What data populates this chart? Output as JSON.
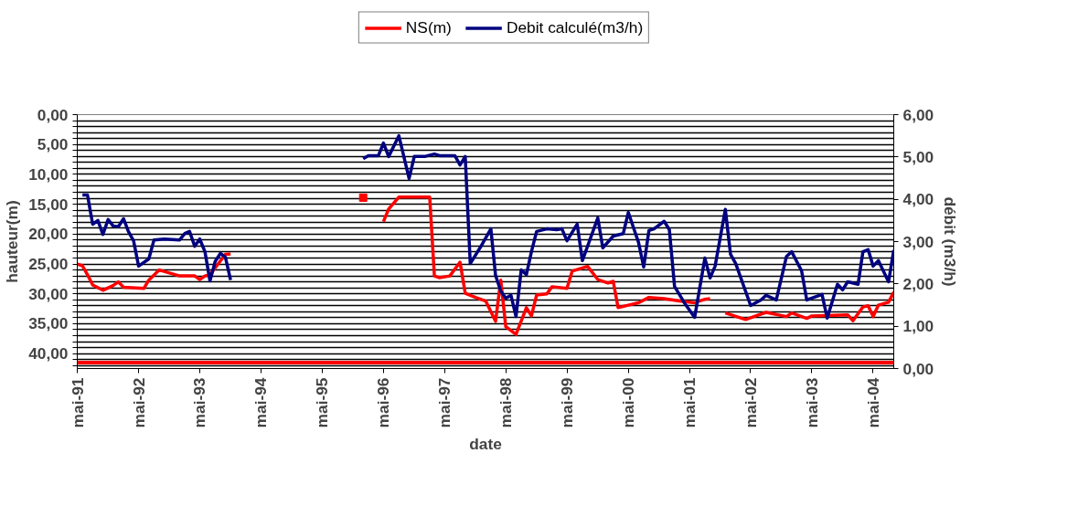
{
  "chart_data": {
    "type": "line",
    "xlabel": "date",
    "ylabel": "hauteur(m)",
    "y2label": "débit (m3/h)",
    "xlim": [
      "1991-05",
      "2004-09"
    ],
    "xticks": [
      {
        "value": "1991-05",
        "label": "mai-91"
      },
      {
        "value": "1992-05",
        "label": "mai-92"
      },
      {
        "value": "1993-05",
        "label": "mai-93"
      },
      {
        "value": "1994-05",
        "label": "mai-94"
      },
      {
        "value": "1995-05",
        "label": "mai-95"
      },
      {
        "value": "1996-05",
        "label": "mai-96"
      },
      {
        "value": "1997-05",
        "label": "mai-97"
      },
      {
        "value": "1998-05",
        "label": "mai-98"
      },
      {
        "value": "1999-05",
        "label": "mai-99"
      },
      {
        "value": "2000-05",
        "label": "mai-00"
      },
      {
        "value": "2001-05",
        "label": "mai-01"
      },
      {
        "value": "2002-05",
        "label": "mai-02"
      },
      {
        "value": "2003-05",
        "label": "mai-03"
      },
      {
        "value": "2004-05",
        "label": "mai-04"
      }
    ],
    "ylim": [
      42.5,
      0
    ],
    "yticks": [
      {
        "value": 0,
        "label": "0,00"
      },
      {
        "value": 1,
        "label": null
      },
      {
        "value": 2,
        "label": null
      },
      {
        "value": 3,
        "label": null
      },
      {
        "value": 4,
        "label": null
      },
      {
        "value": 5,
        "label": "5,00"
      },
      {
        "value": 6,
        "label": null
      },
      {
        "value": 7,
        "label": null
      },
      {
        "value": 8,
        "label": null
      },
      {
        "value": 9,
        "label": null
      },
      {
        "value": 10,
        "label": "10,00"
      },
      {
        "value": 11,
        "label": null
      },
      {
        "value": 12,
        "label": null
      },
      {
        "value": 13,
        "label": null
      },
      {
        "value": 14,
        "label": null
      },
      {
        "value": 15,
        "label": "15,00"
      },
      {
        "value": 16,
        "label": null
      },
      {
        "value": 17,
        "label": null
      },
      {
        "value": 18,
        "label": null
      },
      {
        "value": 19,
        "label": null
      },
      {
        "value": 20,
        "label": "20,00"
      },
      {
        "value": 21,
        "label": null
      },
      {
        "value": 22,
        "label": null
      },
      {
        "value": 23,
        "label": null
      },
      {
        "value": 24,
        "label": null
      },
      {
        "value": 25,
        "label": "25,00"
      },
      {
        "value": 26,
        "label": null
      },
      {
        "value": 27,
        "label": null
      },
      {
        "value": 28,
        "label": null
      },
      {
        "value": 29,
        "label": null
      },
      {
        "value": 30,
        "label": "30,00"
      },
      {
        "value": 31,
        "label": null
      },
      {
        "value": 32,
        "label": null
      },
      {
        "value": 33,
        "label": null
      },
      {
        "value": 34,
        "label": null
      },
      {
        "value": 35,
        "label": "35,00"
      },
      {
        "value": 36,
        "label": null
      },
      {
        "value": 37,
        "label": null
      },
      {
        "value": 38,
        "label": null
      },
      {
        "value": 39,
        "label": null
      },
      {
        "value": 40,
        "label": "40,00"
      },
      {
        "value": 41,
        "label": null
      },
      {
        "value": 42,
        "label": null
      }
    ],
    "y2lim": [
      0,
      6
    ],
    "y2ticks": [
      {
        "value": 0,
        "label": "0,00"
      },
      {
        "value": 1,
        "label": "1,00"
      },
      {
        "value": 2,
        "label": "2,00"
      },
      {
        "value": 3,
        "label": "3,00"
      },
      {
        "value": 4,
        "label": "4,00"
      },
      {
        "value": 5,
        "label": "5,00"
      },
      {
        "value": 6,
        "label": "6,00"
      }
    ],
    "grid": "y",
    "legend": "top",
    "marker": "none",
    "line_style": "solid",
    "ref_lines": [
      {
        "axis": "y",
        "value": 41.5,
        "color": "#ff0000"
      }
    ],
    "series": [
      {
        "name": "NS(m)",
        "color": "#ff0000",
        "x": [
          "1991-05",
          "1991-06",
          "1991-07",
          "1991-08",
          "1991-10",
          "1991-12",
          "1992-01",
          "1992-02",
          "1992-06",
          "1992-07",
          "1992-09",
          "1993-01",
          "1993-04",
          "1993-05",
          "1993-06",
          "1993-07",
          "1993-10",
          "1993-11",
          "1994-06",
          "1996-05",
          "1996-06",
          "1996-08",
          "1997-02",
          "1997-03",
          "1997-04",
          "1997-06",
          "1997-08",
          "1997-09",
          "1997-11",
          "1998-01",
          "1998-03",
          "1998-04",
          "1998-05",
          "1998-07",
          "1998-09",
          "1998-10",
          "1998-11",
          "1999-01",
          "1999-02",
          "1999-05",
          "1999-06",
          "1999-09",
          "1999-11",
          "2000-01",
          "2000-02",
          "2000-03",
          "2000-05",
          "2000-07",
          "2000-09",
          "2000-12",
          "2001-03",
          "2001-06",
          "2001-08",
          "2001-09",
          "2001-11",
          "2001-12",
          "2002-04",
          "2002-06",
          "2002-08",
          "2002-12",
          "2003-01",
          "2003-04",
          "2003-05",
          "2003-12",
          "2004-01",
          "2004-03",
          "2004-04",
          "2004-05",
          "2004-06",
          "2004-08",
          "2004-09"
        ],
        "values": [
          25.0,
          25.3,
          26.8,
          28.5,
          29.4,
          28.6,
          28.0,
          28.9,
          29.1,
          27.7,
          26.0,
          27.0,
          27.0,
          27.6,
          27.0,
          26.8,
          23.4,
          23.3,
          null,
          17.9,
          15.8,
          13.8,
          13.8,
          27.0,
          27.3,
          27.0,
          24.7,
          29.9,
          30.6,
          31.2,
          34.6,
          27.7,
          35.5,
          36.8,
          32.3,
          33.7,
          30.2,
          30.0,
          28.8,
          29.1,
          26.2,
          25.4,
          27.6,
          28.2,
          27.9,
          32.3,
          31.9,
          31.5,
          30.6,
          30.8,
          31.2,
          31.5,
          30.9,
          30.8,
          null,
          33.2,
          34.3,
          33.7,
          33.1,
          33.8,
          33.2,
          34.1,
          33.7,
          33.5,
          34.5,
          32.2,
          32.0,
          33.8,
          31.9,
          31.4,
          29.7
        ]
      },
      {
        "type": "scatter",
        "marker": "square",
        "color": "#ff0000",
        "x": [
          "1996-01"
        ],
        "values": [
          13.9
        ]
      },
      {
        "name": "Debit calculé(m3/h)",
        "color": "#000080",
        "axis": "y2",
        "x": [
          "1991-06",
          "1991-07",
          "1991-08",
          "1991-09",
          "1991-10",
          "1991-11",
          "1991-12",
          "1992-01",
          "1992-02",
          "1992-03",
          "1992-04",
          "1992-05",
          "1992-07",
          "1992-08",
          "1992-10",
          "1993-01",
          "1993-02",
          "1993-03",
          "1993-04",
          "1993-05",
          "1993-06",
          "1993-07",
          "1993-08",
          "1993-09",
          "1993-10",
          "1993-11",
          "1994-06",
          "1996-01",
          "1996-02",
          "1996-04",
          "1996-05",
          "1996-06",
          "1996-08",
          "1996-10",
          "1996-11",
          "1997-01",
          "1997-03",
          "1997-04",
          "1997-07",
          "1997-08",
          "1997-09",
          "1997-10",
          "1997-12",
          "1998-02",
          "1998-03",
          "1998-04",
          "1998-05",
          "1998-06",
          "1998-07",
          "1998-08",
          "1998-09",
          "1998-10",
          "1998-11",
          "1999-01",
          "1999-03",
          "1999-04",
          "1999-05",
          "1999-07",
          "1999-08",
          "1999-11",
          "1999-12",
          "2000-02",
          "2000-04",
          "2000-05",
          "2000-07",
          "2000-08",
          "2000-09",
          "2000-10",
          "2000-12",
          "2001-01",
          "2001-02",
          "2001-04",
          "2001-06",
          "2001-08",
          "2001-09",
          "2001-10",
          "2001-12",
          "2002-01",
          "2002-02",
          "2002-05",
          "2002-07",
          "2002-08",
          "2002-10",
          "2002-12",
          "2003-01",
          "2003-03",
          "2003-04",
          "2003-07",
          "2003-08",
          "2003-10",
          "2003-11",
          "2003-12",
          "2004-02",
          "2004-03",
          "2004-04",
          "2004-05",
          "2004-06",
          "2004-08",
          "2004-09"
        ],
        "values": [
          4.1,
          4.1,
          3.41,
          3.5,
          3.17,
          3.52,
          3.37,
          3.35,
          3.54,
          3.24,
          3.02,
          2.42,
          2.59,
          3.04,
          3.06,
          3.04,
          3.19,
          3.24,
          2.89,
          3.06,
          2.76,
          2.07,
          2.53,
          2.72,
          2.63,
          2.09,
          null,
          4.96,
          5.03,
          5.03,
          5.33,
          5.01,
          5.5,
          4.49,
          5.01,
          5.01,
          5.07,
          5.03,
          5.03,
          4.81,
          5.01,
          2.48,
          2.87,
          3.3,
          2.2,
          1.83,
          1.66,
          1.73,
          1.23,
          2.33,
          2.22,
          2.76,
          3.24,
          3.3,
          3.28,
          3.3,
          3.02,
          3.41,
          2.55,
          3.56,
          2.85,
          3.13,
          3.19,
          3.69,
          2.98,
          2.4,
          3.26,
          3.3,
          3.48,
          3.28,
          1.94,
          1.55,
          1.21,
          2.61,
          2.14,
          2.42,
          3.76,
          2.7,
          2.48,
          1.49,
          1.62,
          1.73,
          1.62,
          2.65,
          2.76,
          2.31,
          1.62,
          1.75,
          1.19,
          1.99,
          1.86,
          2.05,
          1.99,
          2.76,
          2.81,
          2.42,
          2.55,
          2.05,
          2.8
        ]
      }
    ]
  }
}
